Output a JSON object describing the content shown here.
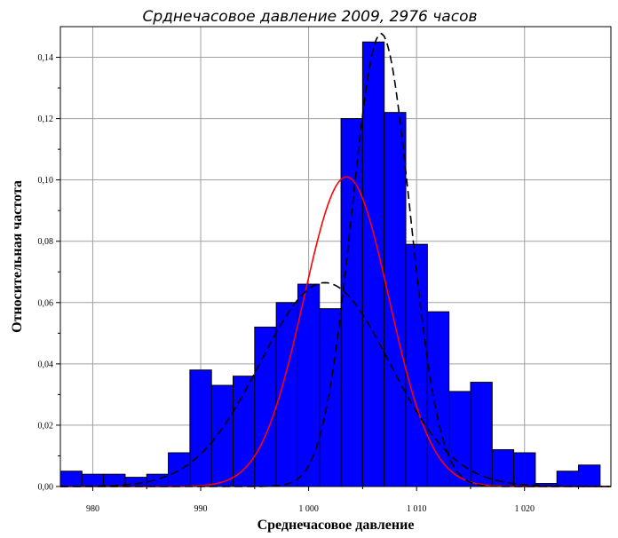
{
  "chart_data": {
    "type": "bar",
    "title": "Срднечасовое давление 2009, 2976 часов",
    "xlabel": "Среднечасовое давление",
    "ylabel": "Относительная частота",
    "xlim": [
      977,
      1028
    ],
    "ylim": [
      0,
      0.15
    ],
    "grid": true,
    "x_ticks": [
      980,
      990,
      1000,
      1010,
      1020
    ],
    "x_tick_labels": [
      "980",
      "990",
      "1 000",
      "1 010",
      "1 020"
    ],
    "y_ticks": [
      0,
      0.02,
      0.04,
      0.06,
      0.08,
      0.1,
      0.12,
      0.14
    ],
    "y_tick_labels": [
      "0,00",
      "0,02",
      "0,04",
      "0,06",
      "0,08",
      "0,10",
      "0,12",
      "0,14"
    ],
    "histogram": {
      "bin_width": 2,
      "bin_starts": [
        977,
        979,
        981,
        983,
        985,
        987,
        989,
        991,
        993,
        995,
        997,
        999,
        1001,
        1003,
        1005,
        1007,
        1009,
        1011,
        1013,
        1015,
        1017,
        1019,
        1021,
        1023,
        1025,
        1027
      ],
      "values": [
        0.005,
        0.004,
        0.004,
        0.003,
        0.004,
        0.011,
        0.038,
        0.033,
        0.036,
        0.052,
        0.06,
        0.066,
        0.058,
        0.12,
        0.145,
        0.122,
        0.079,
        0.057,
        0.031,
        0.034,
        0.012,
        0.011,
        0.001,
        0.005,
        0.007,
        0.0
      ],
      "color": "#0000ff"
    },
    "curves": [
      {
        "style": "solid",
        "color": "#ff0000",
        "mean": 1003.5,
        "sd": 3.95
      },
      {
        "style": "dashed",
        "color": "#000000",
        "mean": 1001.5,
        "sd": 6.0
      },
      {
        "style": "dashed",
        "color": "#000000",
        "mean": 1006.7,
        "sd": 2.7
      }
    ]
  }
}
